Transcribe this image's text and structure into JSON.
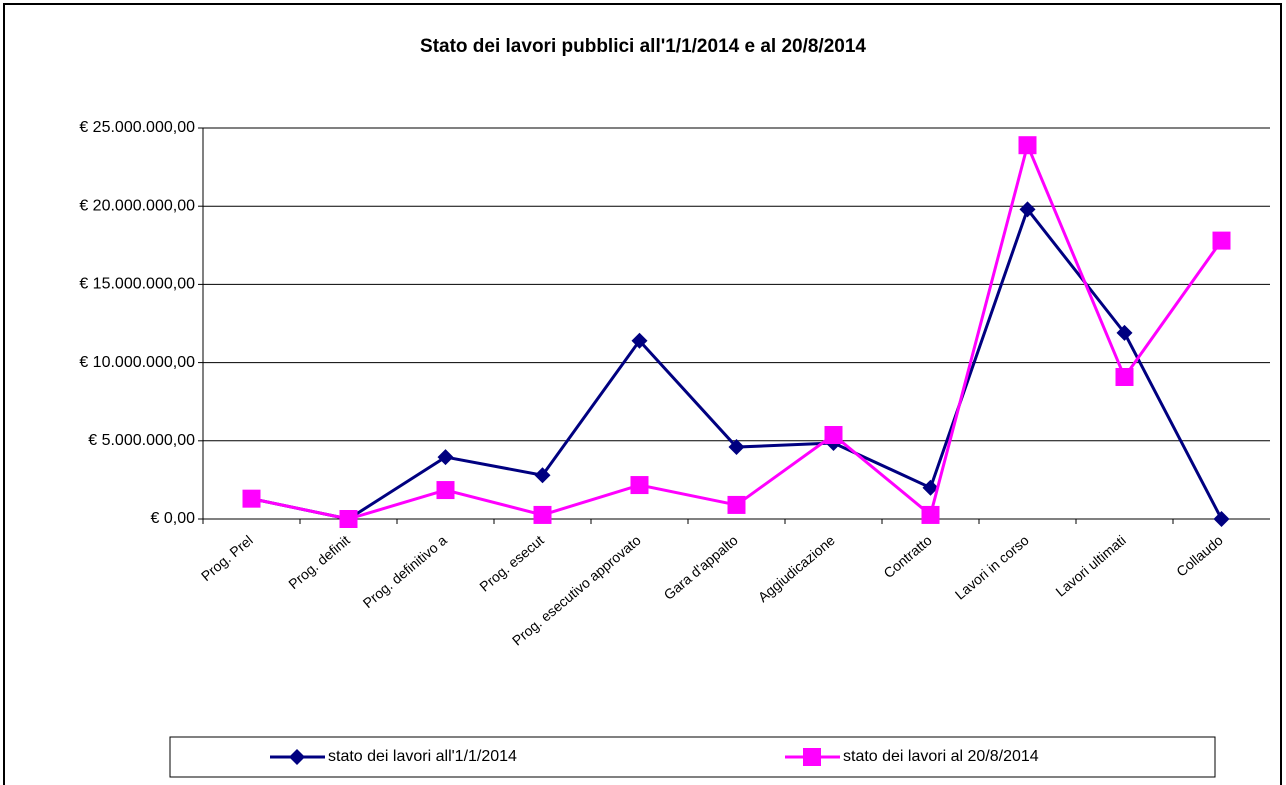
{
  "chart_data": {
    "type": "line",
    "title": "Stato dei lavori pubblici all'1/1/2014 e al 20/8/2014",
    "categories": [
      "Prog. Prel",
      "Prog. definit",
      "Prog. definitivo a",
      "Prog. esecut",
      "Prog. esecutivo approvato",
      "Gara d'appalto",
      "Aggiudicazione",
      "Contratto",
      "Lavori in corso",
      "Lavori ultimati",
      "Collaudo"
    ],
    "series": [
      {
        "name": "stato dei lavori all'1/1/2014",
        "color": "#000080",
        "marker": "diamond",
        "values": [
          1300000,
          0,
          3960000,
          2800000,
          11400000,
          4600000,
          4860000,
          2000000,
          19800000,
          11900000,
          0
        ]
      },
      {
        "name": "stato dei lavori al 20/8/2014",
        "color": "#ff00ff",
        "marker": "square",
        "values": [
          1300000,
          0,
          1850000,
          260000,
          2170000,
          900000,
          5370000,
          260000,
          23900000,
          9080000,
          17800000
        ]
      }
    ],
    "ylim": [
      0,
      25000000
    ],
    "yticks": [
      {
        "value": 0,
        "label": "€ 0,00"
      },
      {
        "value": 5000000,
        "label": "€ 5.000.000,00"
      },
      {
        "value": 10000000,
        "label": "€ 10.000.000,00"
      },
      {
        "value": 15000000,
        "label": "€ 15.000.000,00"
      },
      {
        "value": 20000000,
        "label": "€ 20.000.000,00"
      },
      {
        "value": 25000000,
        "label": "€ 25.000.000,00"
      }
    ],
    "grid": true,
    "legend": "bottom"
  }
}
